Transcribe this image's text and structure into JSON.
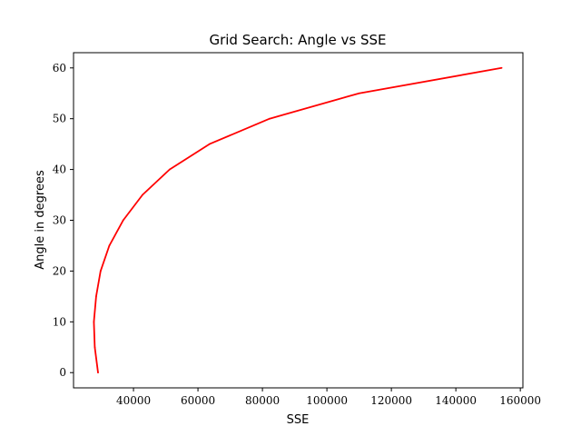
{
  "chart_data": {
    "type": "line",
    "title": "Grid Search: Angle vs SSE",
    "xlabel": "SSE",
    "ylabel": "Angle in degrees",
    "xlim": [
      21400,
      160800
    ],
    "ylim": [
      -3,
      63
    ],
    "x_ticks": [
      40000,
      60000,
      80000,
      100000,
      120000,
      140000,
      160000
    ],
    "y_ticks": [
      0,
      10,
      20,
      30,
      40,
      50,
      60
    ],
    "grid": false,
    "legend": "none",
    "series": [
      {
        "color": "#ff0000",
        "x": [
          29000,
          28000,
          27700,
          28400,
          29800,
          32500,
          36800,
          42800,
          51200,
          63600,
          82200,
          110000,
          154200
        ],
        "y": [
          0,
          5,
          10,
          15,
          20,
          25,
          30,
          35,
          40,
          45,
          50,
          55,
          60
        ]
      }
    ]
  }
}
